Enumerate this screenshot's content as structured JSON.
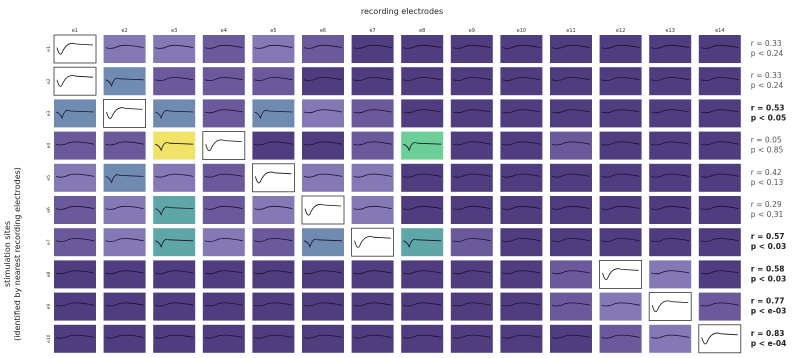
{
  "chart_data": {
    "type": "heatmap",
    "title": "recording electrodes",
    "ylabel_line1": "stimulation sites",
    "ylabel_line2": "(identified by nearest recording electrodes)",
    "columns": [
      "e1",
      "e2",
      "e3",
      "e4",
      "e5",
      "e6",
      "e7",
      "e8",
      "e9",
      "e10",
      "e11",
      "e12",
      "e13",
      "e14"
    ],
    "rows": [
      "e1",
      "e2",
      "e3",
      "e4",
      "e5",
      "e6",
      "e7",
      "e8",
      "e9",
      "e10"
    ],
    "stim_electrode": [
      1,
      1,
      2,
      4,
      5,
      6,
      7,
      12,
      13,
      14
    ],
    "colors": [
      "#3e2b5e",
      "#4f3d7f",
      "#6a5a9c",
      "#8478b5",
      "#6f8cb0",
      "#5ea6a8",
      "#6ccf98",
      "#f1e26a"
    ],
    "levels": [
      [
        7,
        3,
        3,
        2,
        3,
        2,
        1,
        1,
        1,
        1,
        1,
        1,
        1,
        1
      ],
      [
        7,
        4,
        2,
        2,
        2,
        1,
        1,
        1,
        1,
        1,
        1,
        1,
        1,
        1
      ],
      [
        4,
        7,
        4,
        2,
        4,
        3,
        2,
        1,
        1,
        1,
        1,
        1,
        1,
        1
      ],
      [
        2,
        2,
        7,
        7,
        1,
        1,
        2,
        6,
        1,
        1,
        2,
        1,
        1,
        1
      ],
      [
        3,
        4,
        3,
        2,
        7,
        3,
        3,
        1,
        1,
        1,
        1,
        1,
        1,
        1
      ],
      [
        2,
        3,
        5,
        2,
        3,
        7,
        3,
        1,
        1,
        1,
        1,
        1,
        1,
        1
      ],
      [
        2,
        3,
        5,
        3,
        2,
        4,
        7,
        5,
        2,
        1,
        1,
        1,
        1,
        1
      ],
      [
        1,
        1,
        1,
        1,
        1,
        1,
        1,
        1,
        1,
        1,
        2,
        7,
        3,
        1
      ],
      [
        1,
        1,
        1,
        1,
        1,
        1,
        1,
        1,
        1,
        1,
        2,
        3,
        7,
        2
      ],
      [
        1,
        1,
        1,
        1,
        1,
        1,
        1,
        1,
        1,
        1,
        1,
        2,
        3,
        7
      ]
    ],
    "stats": [
      {
        "r": "r = 0.33",
        "p": "p < 0.24",
        "sig": false
      },
      {
        "r": "r = 0.33",
        "p": "p < 0.24",
        "sig": false
      },
      {
        "r": "r = 0.53",
        "p": "p < 0.05",
        "sig": true
      },
      {
        "r": "r = 0.05",
        "p": "p < 0.85",
        "sig": false
      },
      {
        "r": "r = 0.42",
        "p": "p < 0.13",
        "sig": false
      },
      {
        "r": "r = 0.29",
        "p": "p < 0.31",
        "sig": false
      },
      {
        "r": "r = 0.57",
        "p": "p < 0.03",
        "sig": true
      },
      {
        "r": "r = 0.58",
        "p": "p < 0.03",
        "sig": true
      },
      {
        "r": "r = 0.77",
        "p": "p < e-03",
        "sig": true
      },
      {
        "r": "r = 0.83",
        "p": "p < e-04",
        "sig": true
      }
    ]
  }
}
